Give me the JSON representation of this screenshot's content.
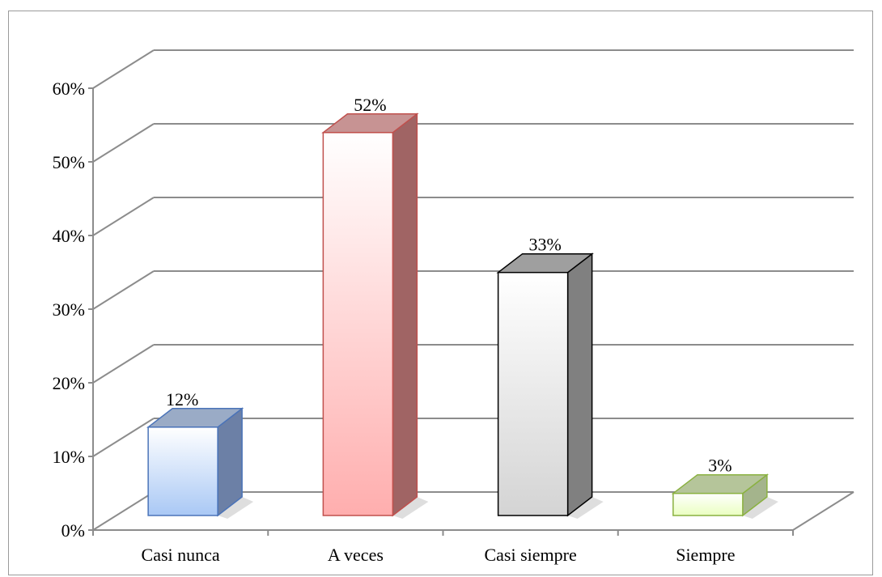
{
  "chart_data": {
    "type": "bar",
    "title": "",
    "xlabel": "",
    "ylabel": "",
    "categories": [
      "Casi nunca",
      "A veces",
      "Casi siempre",
      "Siempre"
    ],
    "values": [
      12,
      52,
      33,
      3
    ],
    "value_labels": [
      "12%",
      "52%",
      "33%",
      "3%"
    ],
    "ylim": [
      0,
      60
    ],
    "yticks": [
      0,
      10,
      20,
      30,
      40,
      50,
      60
    ],
    "ytick_labels": [
      "0%",
      "10%",
      "20%",
      "30%",
      "40%",
      "50%",
      "60%"
    ],
    "grid": true,
    "legend": "none",
    "style": "3d-column",
    "colors": [
      "#a9c8f5",
      "#ffaeae",
      "#d4d4d4",
      "#eaffc0"
    ],
    "edge_colors": [
      "#4a73b8",
      "#c0504d",
      "#000000",
      "#8ab140"
    ],
    "side_colors": [
      "#6c80a6",
      "#a06464",
      "#808080",
      "#a4b48c"
    ],
    "top_colors": [
      "#9aabc6",
      "#c79393",
      "#9f9f9f",
      "#b5c59a"
    ]
  }
}
